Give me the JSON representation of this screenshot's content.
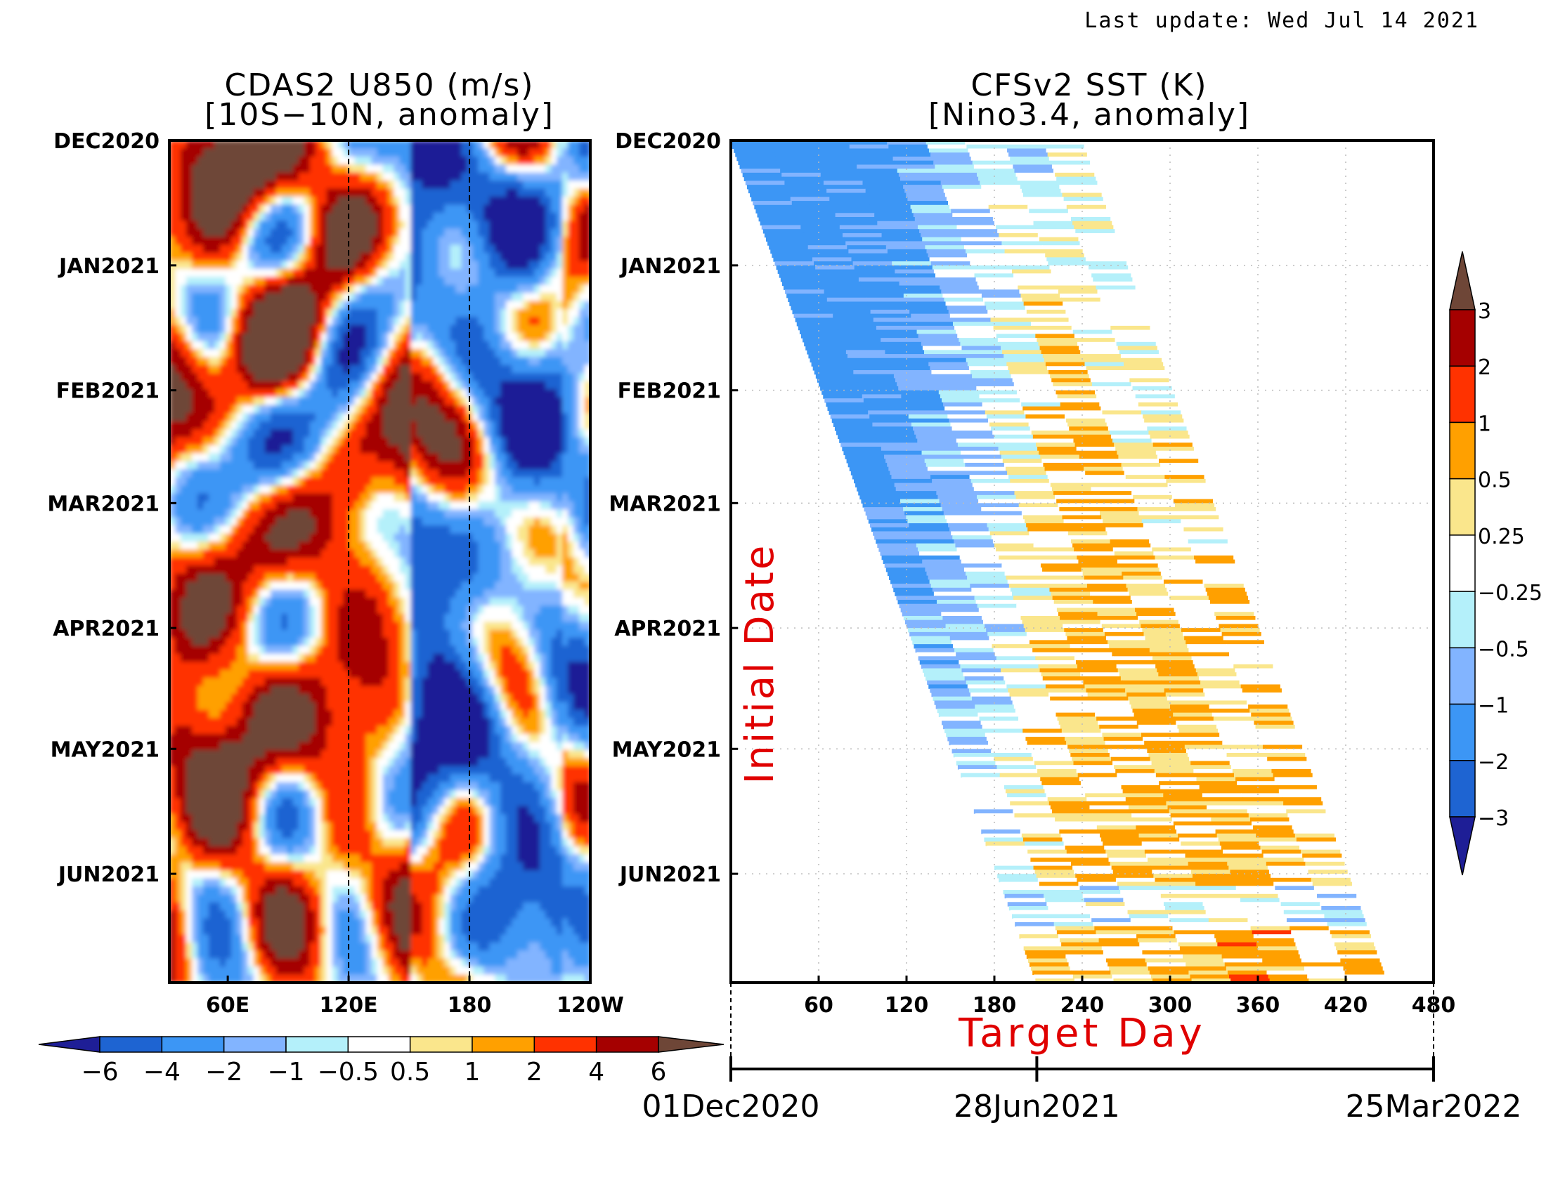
{
  "header": {
    "last_update": "Last update: Wed Jul 14 2021"
  },
  "chart_data": [
    {
      "type": "heatmap",
      "title": "CDAS2 U850 (m/s)",
      "subtitle": "[10S−10N, anomaly]",
      "x_ticks": [
        "60E",
        "120E",
        "180",
        "120W"
      ],
      "x_tick_lon": [
        60,
        120,
        180,
        240
      ],
      "xlim_lon": [
        31,
        240
      ],
      "y_ticks": [
        "DEC2020",
        "JAN2021",
        "FEB2021",
        "MAR2021",
        "APR2021",
        "MAY2021",
        "JUN2021"
      ],
      "y_tick_days": [
        0,
        31,
        62,
        90,
        121,
        151,
        182
      ],
      "ylim_days": [
        0,
        209
      ],
      "reference_lines_lon": [
        120,
        180
      ],
      "colorbar": {
        "levels": [
          "−6",
          "−4",
          "−2",
          "−1",
          "−0.5",
          "0.5",
          "1",
          "2",
          "4",
          "6"
        ],
        "colors": [
          "#1e1e96",
          "#1e64d2",
          "#3c96f5",
          "#82b4ff",
          "#b4f0fa",
          "#ffffff",
          "#fae68c",
          "#ffa000",
          "#ff3200",
          "#a50000",
          "#6e4637"
        ]
      }
    },
    {
      "type": "heatmap",
      "title": "CFSv2 SST (K)",
      "subtitle": "[Nino3.4, anomaly]",
      "xlabel": "Target Day",
      "ylabel": "Initial Date",
      "x_ticks": [
        "60",
        "120",
        "180",
        "240",
        "300",
        "360",
        "420",
        "480"
      ],
      "xlim": [
        0,
        480
      ],
      "y_ticks": [
        "DEC2020",
        "JAN2021",
        "FEB2021",
        "MAR2021",
        "APR2021",
        "MAY2021",
        "JUN2021"
      ],
      "y_tick_days": [
        0,
        31,
        62,
        90,
        121,
        151,
        182
      ],
      "ylim_days": [
        0,
        209
      ],
      "date_axis": {
        "labels": [
          "01Dec2020",
          "28Jun2021",
          "25Mar2022"
        ],
        "days": [
          0,
          209,
          480
        ]
      },
      "colorbar": {
        "levels": [
          "−3",
          "−2",
          "−1",
          "−0.5",
          "−0.25",
          "0.25",
          "0.5",
          "1",
          "2",
          "3"
        ],
        "colors": [
          "#1e1e96",
          "#1e64d2",
          "#3c96f5",
          "#82b4ff",
          "#b4f0fa",
          "#ffffff",
          "#fae68c",
          "#ffa000",
          "#ff3200",
          "#a50000",
          "#6e4637"
        ]
      }
    }
  ]
}
